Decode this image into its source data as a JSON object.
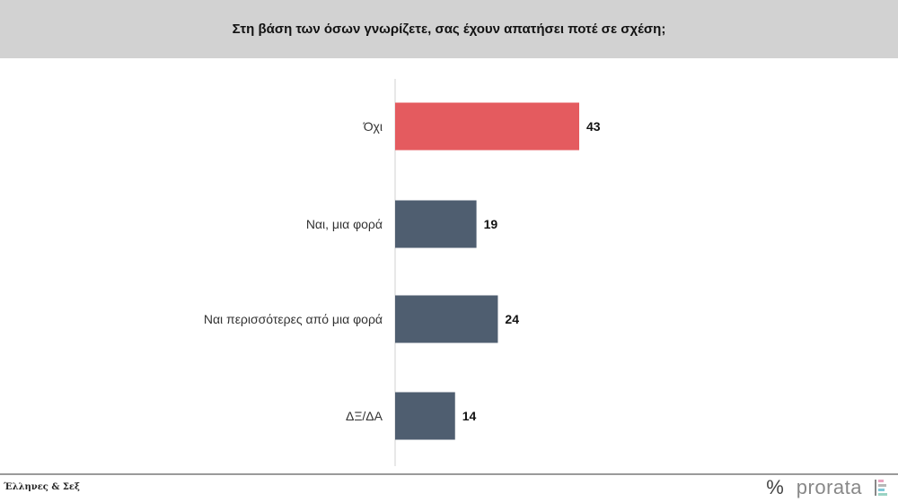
{
  "header": {
    "title": "Στη βάση των όσων γνωρίζετε, σας έχουν απατήσει ποτέ σε σχέση;"
  },
  "chart_data": {
    "type": "bar",
    "orientation": "horizontal",
    "title": "Στη βάση των όσων γνωρίζετε, σας έχουν απατήσει ποτέ σε σχέση;",
    "categories": [
      "Όχι",
      "Ναι, μια φορά",
      "Ναι περισσότερες από μια φορά",
      "ΔΞ/ΔΑ"
    ],
    "values": [
      43,
      19,
      24,
      14
    ],
    "colors": [
      "#e45b5f",
      "#4f5e70",
      "#4f5e70",
      "#4f5e70"
    ],
    "grid": false,
    "xlim": [
      0,
      100
    ]
  },
  "footer": {
    "source": "Έλληνες & Σεξ",
    "logo_symbol": "%",
    "logo_text": "prorata"
  }
}
